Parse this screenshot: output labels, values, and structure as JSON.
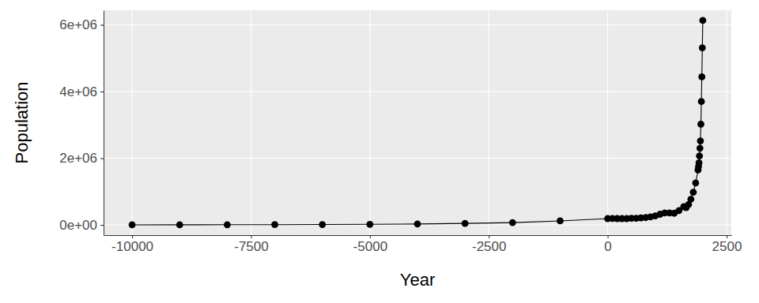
{
  "chart_data": {
    "type": "line",
    "x_label": "Year",
    "y_label": "Population",
    "x": [
      -10000,
      -9000,
      -8000,
      -7000,
      -6000,
      -5000,
      -4000,
      -3000,
      -2000,
      -1000,
      0,
      100,
      200,
      300,
      400,
      500,
      600,
      700,
      800,
      900,
      1000,
      1100,
      1200,
      1300,
      1400,
      1500,
      1600,
      1650,
      1700,
      1750,
      1800,
      1850,
      1900,
      1910,
      1920,
      1930,
      1940,
      1950,
      1960,
      1970,
      1980,
      1990,
      2000
    ],
    "values": [
      2000,
      4000,
      6000,
      8000,
      12000,
      18000,
      28000,
      45000,
      70000,
      120000,
      190000,
      195000,
      190000,
      190000,
      190000,
      200000,
      200000,
      210000,
      220000,
      240000,
      270000,
      320000,
      360000,
      360000,
      350000,
      430000,
      550000,
      520000,
      610000,
      770000,
      980000,
      1260000,
      1650000,
      1750000,
      1860000,
      2070000,
      2300000,
      2520000,
      3020000,
      3700000,
      4440000,
      5310000,
      6130000
    ],
    "color": "#000000",
    "marker": "circle",
    "line_style": "solid",
    "xlim": [
      -10600,
      2600
    ],
    "xticks": [
      -10000,
      -7500,
      -5000,
      -2500,
      0,
      2500
    ],
    "ylim": [
      -306500,
      6436500
    ],
    "yticks": [
      {
        "value": 0,
        "label": "0e+00"
      },
      {
        "value": 2000000,
        "label": "2e+06"
      },
      {
        "value": 4000000,
        "label": "4e+06"
      },
      {
        "value": 6000000,
        "label": "6e+06"
      }
    ],
    "grid": true
  }
}
